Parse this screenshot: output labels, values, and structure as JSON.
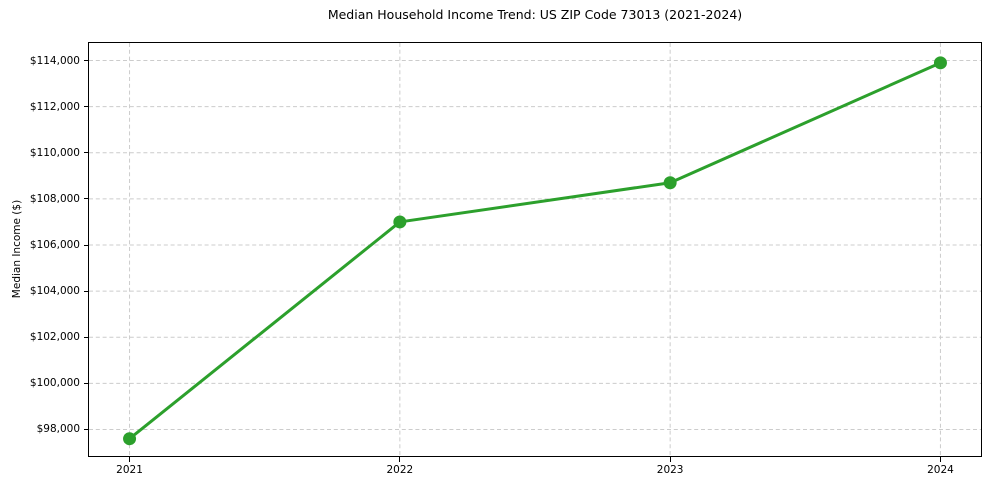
{
  "chart_data": {
    "type": "line",
    "title": "Median Household Income Trend: US ZIP Code 73013 (2021-2024)",
    "xlabel": "",
    "ylabel": "Median Income ($)",
    "categories": [
      "2021",
      "2022",
      "2023",
      "2024"
    ],
    "series": [
      {
        "name": "Median Household Income",
        "values": [
          97600,
          107000,
          108700,
          113900
        ]
      }
    ],
    "y_ticks": [
      {
        "value": 98000,
        "label": "$98,000"
      },
      {
        "value": 100000,
        "label": "$100,000"
      },
      {
        "value": 102000,
        "label": "$102,000"
      },
      {
        "value": 104000,
        "label": "$104,000"
      },
      {
        "value": 106000,
        "label": "$106,000"
      },
      {
        "value": 108000,
        "label": "$108,000"
      },
      {
        "value": 110000,
        "label": "$110,000"
      },
      {
        "value": 112000,
        "label": "$112,000"
      },
      {
        "value": 114000,
        "label": "$114,000"
      }
    ],
    "ylim": [
      96850,
      114760
    ],
    "xlim": [
      -0.15,
      3.15
    ],
    "grid": true,
    "legend": false,
    "line_color": "#2ca02c",
    "grid_color": "#cccccc",
    "axis_color": "#000000",
    "marker": "circle"
  }
}
